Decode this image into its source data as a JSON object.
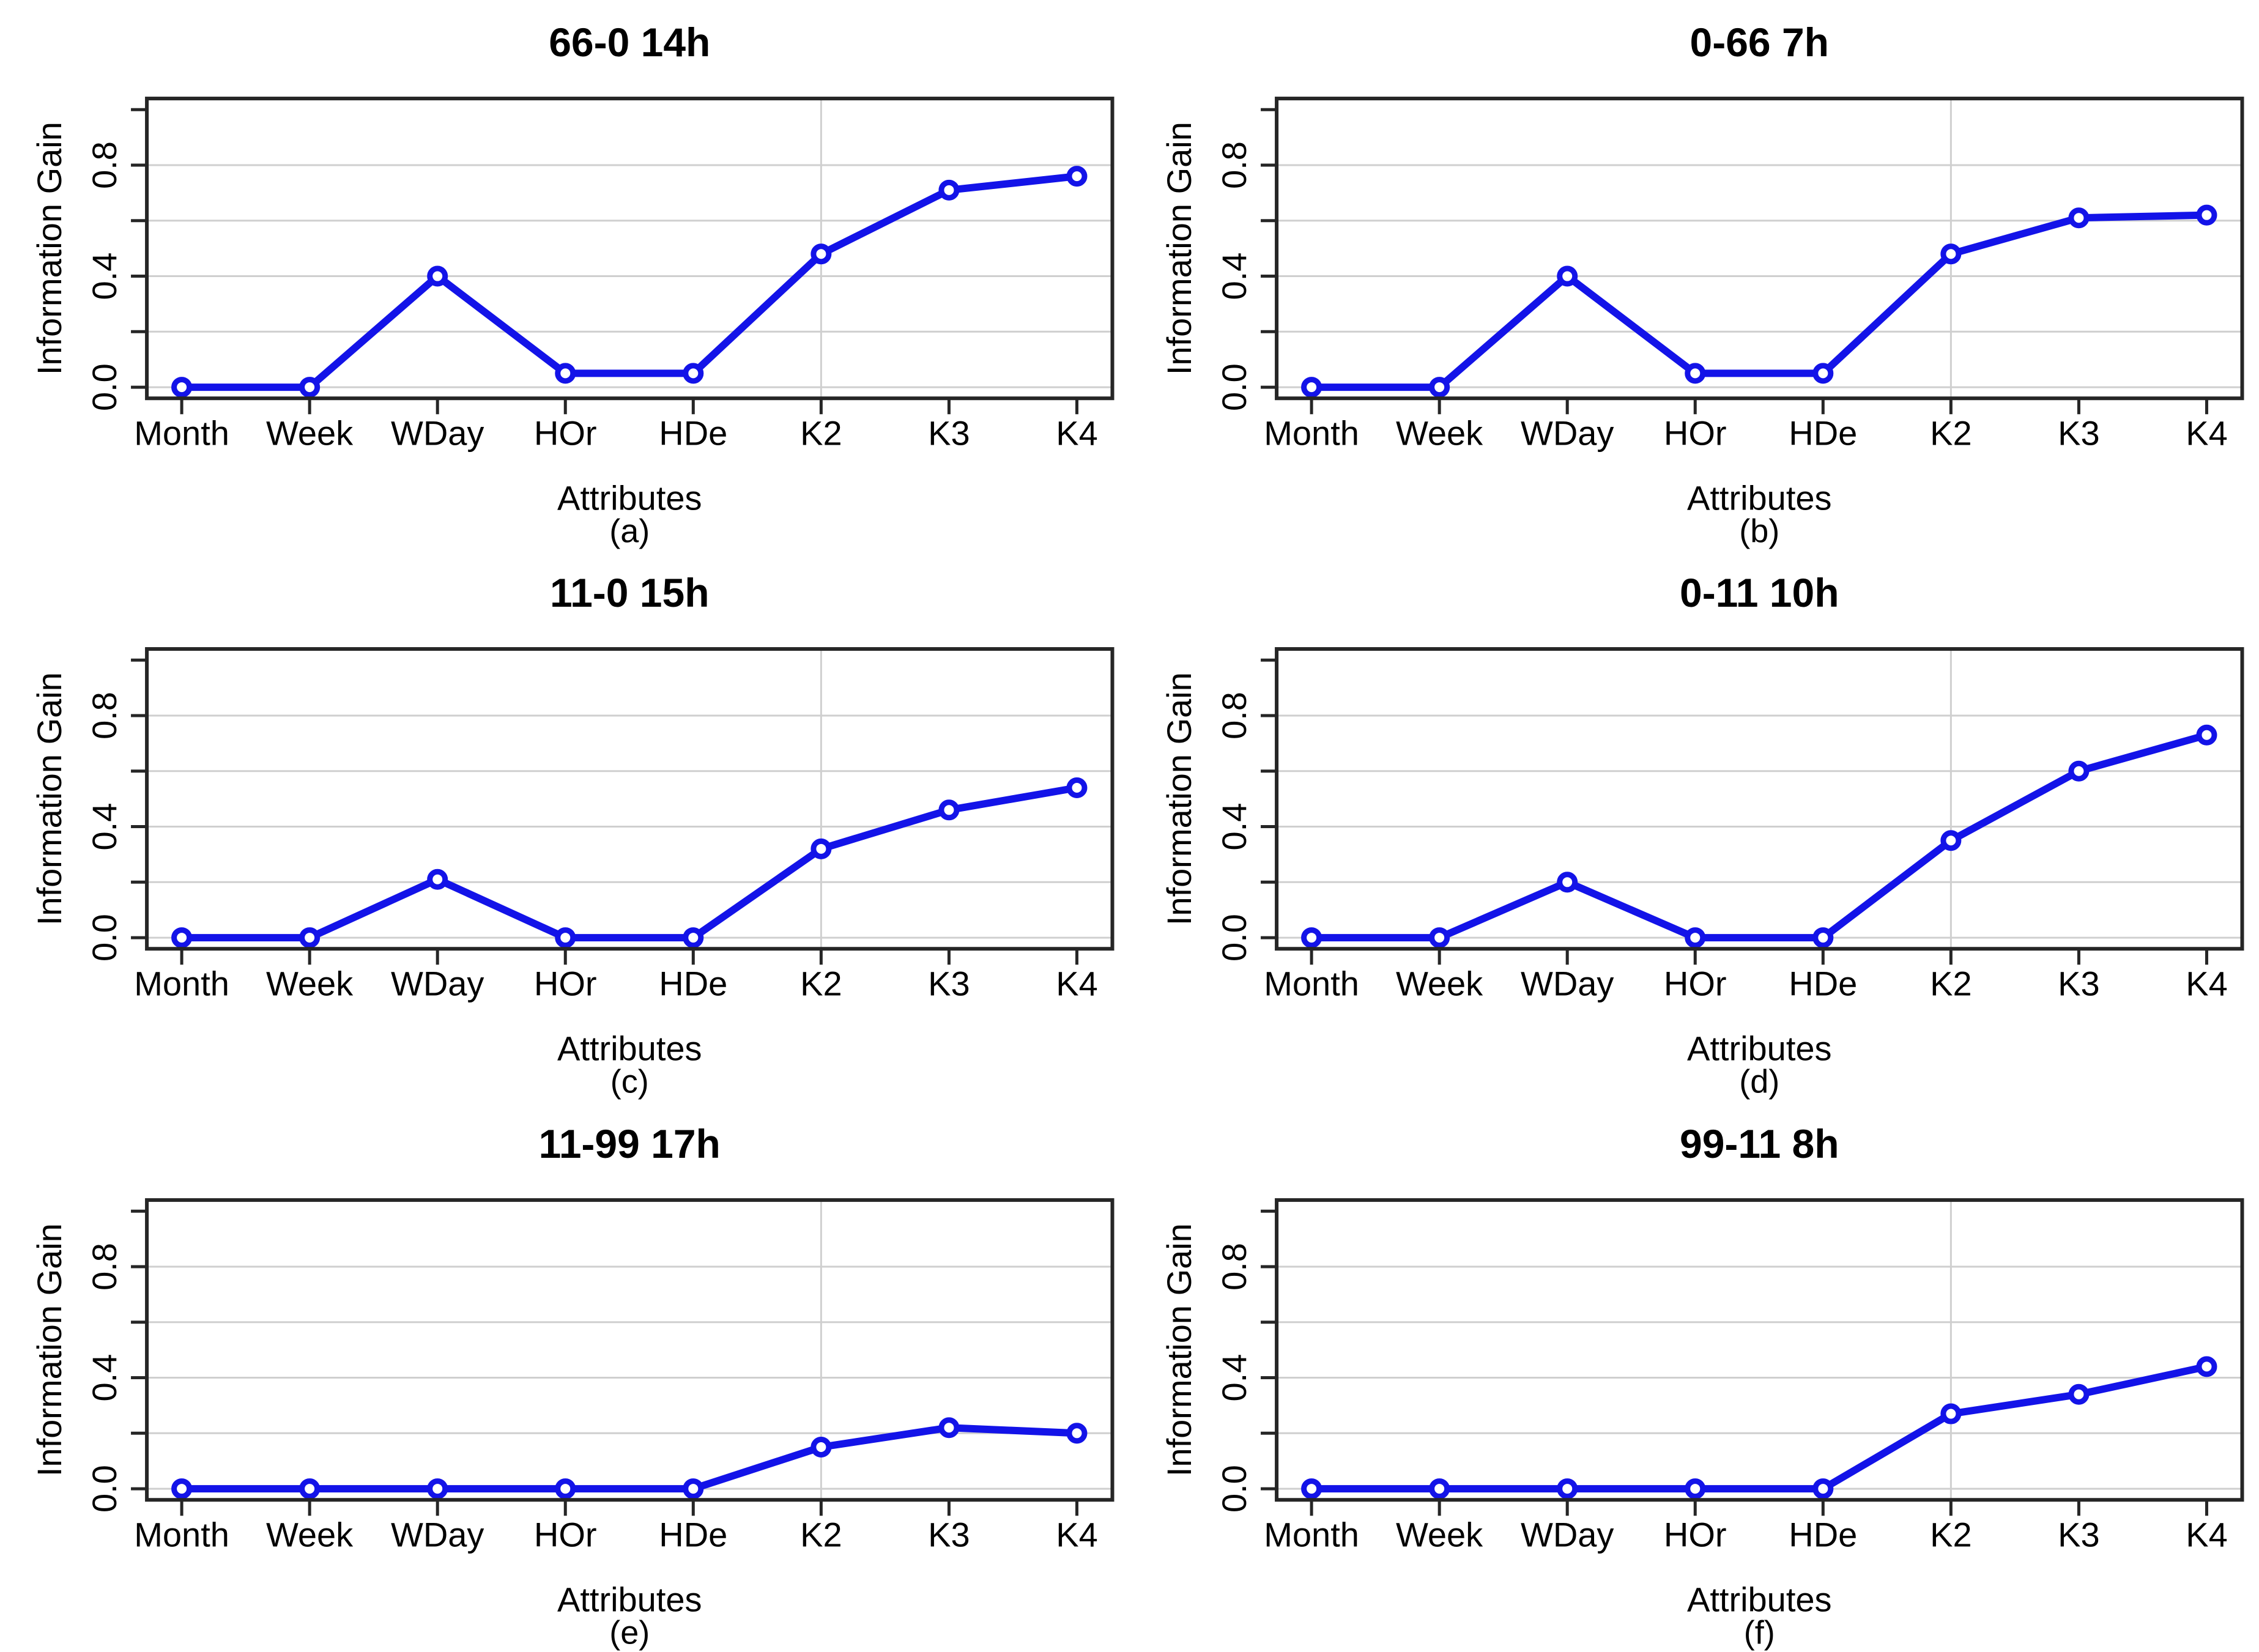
{
  "figure": {
    "background": "#ffffff",
    "text_color": "#000000",
    "accent_line_color": "#1313e8",
    "marker_fill_color": "#ffffff",
    "grid_color": "#cfcfcf",
    "frame_color": "#262626"
  },
  "chart_data": {
    "type": "line",
    "categories": [
      "Month",
      "Week",
      "WDay",
      "HOr",
      "HDe",
      "K2",
      "K3",
      "K4"
    ],
    "xlabel": "Attributes",
    "ylabel": "Information Gain",
    "ylim": [
      -0.04,
      1.04
    ],
    "ytick_step": 0.2,
    "yticks_all": [
      0.0,
      0.2,
      0.4,
      0.6,
      0.8,
      1.0
    ],
    "ytick_labels_shown": [
      "0.0",
      "0.4",
      "0.8"
    ],
    "ytick_label_values": [
      0.0,
      0.4,
      0.8
    ],
    "grid": {
      "horizontal_at": [
        0.0,
        0.2,
        0.4,
        0.6,
        0.8
      ],
      "vertical_at_category": "K2",
      "visible": true
    },
    "legend": "none",
    "panels": [
      {
        "letter": "(a)",
        "title": "66-0 14h",
        "values": [
          0.0,
          0.0,
          0.4,
          0.05,
          0.05,
          0.48,
          0.71,
          0.76
        ]
      },
      {
        "letter": "(b)",
        "title": "0-66 7h",
        "values": [
          0.0,
          0.0,
          0.4,
          0.05,
          0.05,
          0.48,
          0.61,
          0.62
        ]
      },
      {
        "letter": "(c)",
        "title": "11-0 15h",
        "values": [
          0.0,
          0.0,
          0.21,
          0.0,
          0.0,
          0.32,
          0.46,
          0.54
        ]
      },
      {
        "letter": "(d)",
        "title": "0-11 10h",
        "values": [
          0.0,
          0.0,
          0.2,
          0.0,
          0.0,
          0.35,
          0.6,
          0.73
        ]
      },
      {
        "letter": "(e)",
        "title": "11-99 17h",
        "values": [
          0.0,
          0.0,
          0.0,
          0.0,
          0.0,
          0.15,
          0.22,
          0.2
        ]
      },
      {
        "letter": "(f)",
        "title": "99-11 8h",
        "values": [
          0.0,
          0.0,
          0.0,
          0.0,
          0.0,
          0.27,
          0.34,
          0.44
        ]
      }
    ]
  }
}
